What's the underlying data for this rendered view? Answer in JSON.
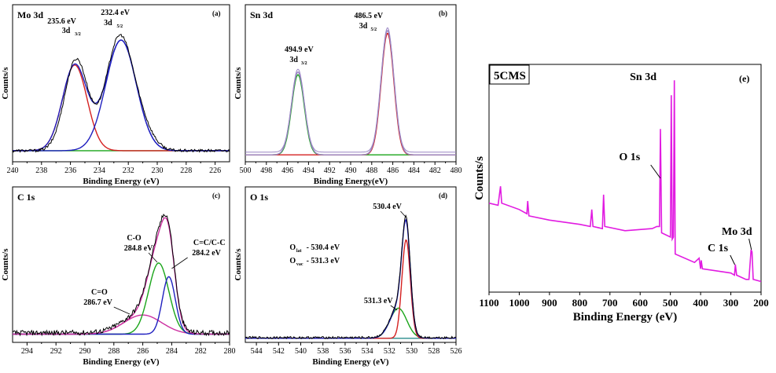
{
  "figure": {
    "axis_common": {
      "x_title": "Binding Energy (eV)",
      "y_title": "Counts/s"
    },
    "colors": {
      "raw": "#000000",
      "envelope": "#1f1fbf",
      "fitA": "#d42020",
      "fitB": "#1aa51a",
      "fitC": "#1f1fbf",
      "fitD": "#cc2fa0",
      "background_sn": "#9a86c4",
      "survey": "#e11be1",
      "baseline_o": "#2a8c8c"
    }
  },
  "chart_data": [
    {
      "id": "a",
      "type": "line",
      "panel_label": "(a)",
      "corner_label": "Mo 3d",
      "xlabel": "Binding Energy (eV)",
      "ylabel": "Counts/s",
      "xlim": [
        240,
        225
      ],
      "xticks": [
        240,
        238,
        236,
        234,
        232,
        230,
        228,
        226
      ],
      "annotations": [
        {
          "text": "235.6 eV",
          "sub_text": "3d",
          "sub_script": "3/2",
          "x": 235.6
        },
        {
          "text": "232.4 eV",
          "sub_text": "3d",
          "sub_script": "5/2",
          "x": 232.4
        }
      ],
      "series": [
        {
          "role": "fit",
          "color_key": "fitB",
          "peaks": [],
          "base": 0.08
        },
        {
          "role": "fit",
          "color_key": "fitA",
          "peaks": [
            [
              235.7,
              0.62,
              0.85
            ]
          ],
          "base": 0.08
        },
        {
          "role": "fit",
          "color_key": "fitC",
          "peaks": [
            [
              232.5,
              0.8,
              1.05
            ]
          ],
          "base": 0.08
        },
        {
          "role": "envelope",
          "color_key": "envelope",
          "peaks": [
            [
              235.7,
              0.62,
              0.85
            ],
            [
              232.5,
              0.8,
              1.05
            ]
          ],
          "base": 0.08
        },
        {
          "role": "raw",
          "color_key": "raw",
          "peaks": [
            [
              235.6,
              0.66,
              0.8
            ],
            [
              232.6,
              0.82,
              0.95
            ],
            [
              231.0,
              0.12,
              0.8
            ]
          ],
          "base": 0.08,
          "noise": 0.01
        }
      ]
    },
    {
      "id": "b",
      "type": "line",
      "panel_label": "(b)",
      "corner_label": "Sn 3d",
      "xlabel": "Binding Energy(eV)",
      "ylabel": "Counts/s",
      "xlim": [
        500,
        480
      ],
      "xticks": [
        500,
        498,
        496,
        494,
        492,
        490,
        488,
        486,
        484,
        482,
        480
      ],
      "annotations": [
        {
          "text": "494.9 eV",
          "sub_text": "3d",
          "sub_script": "3/2",
          "x": 494.9
        },
        {
          "text": "486.5 eV",
          "sub_text": "3d",
          "sub_script": "5/2",
          "x": 486.5
        }
      ],
      "series": [
        {
          "role": "fit",
          "color_key": "fitB",
          "peaks": [
            [
              495.0,
              0.58,
              0.6
            ]
          ],
          "base": 0.05
        },
        {
          "role": "fit",
          "color_key": "fitA",
          "peaks": [
            [
              486.5,
              0.88,
              0.6
            ]
          ],
          "base": 0.05
        },
        {
          "role": "envelope",
          "color_key": "background_sn",
          "peaks": [
            [
              495.0,
              0.6,
              0.62
            ],
            [
              486.5,
              0.9,
              0.62
            ]
          ],
          "base": 0.05
        },
        {
          "role": "raw",
          "color_key": "background_sn",
          "peaks": [
            [
              495.0,
              0.6,
              0.6
            ],
            [
              486.5,
              0.9,
              0.6
            ]
          ],
          "base": 0.07
        }
      ]
    },
    {
      "id": "c",
      "type": "line",
      "panel_label": "(c)",
      "corner_label": "C 1s",
      "xlabel": "Binding Energy (eV)",
      "ylabel": "Counts/s",
      "xlim": [
        295,
        280
      ],
      "xticks": [
        294,
        292,
        290,
        288,
        286,
        284,
        282,
        280
      ],
      "annotations": [
        {
          "text": "C-O",
          "text2": "284.8 eV",
          "x": 284.8
        },
        {
          "text": "C=C/C-C",
          "text2": "284.2 eV",
          "x": 284.2
        },
        {
          "text": "C=O",
          "text2": "286.7 eV",
          "x": 286.7
        }
      ],
      "series": [
        {
          "role": "fit",
          "color_key": "fitD",
          "peaks": [
            [
              286.0,
              0.14,
              1.3
            ]
          ],
          "base": 0.06
        },
        {
          "role": "fit",
          "color_key": "fitB",
          "peaks": [
            [
              284.9,
              0.52,
              0.7
            ]
          ],
          "base": 0.06
        },
        {
          "role": "fit",
          "color_key": "fitC",
          "peaks": [
            [
              284.2,
              0.42,
              0.45
            ]
          ],
          "base": 0.06
        },
        {
          "role": "envelope",
          "color_key": "fitD",
          "peaks": [
            [
              286.0,
              0.14,
              1.3
            ],
            [
              284.9,
              0.52,
              0.7
            ],
            [
              284.2,
              0.42,
              0.45
            ]
          ],
          "base": 0.06
        },
        {
          "role": "raw",
          "color_key": "raw",
          "peaks": [
            [
              286.0,
              0.15,
              1.3
            ],
            [
              284.9,
              0.53,
              0.68
            ],
            [
              284.2,
              0.43,
              0.45
            ]
          ],
          "base": 0.07,
          "noise": 0.018
        }
      ]
    },
    {
      "id": "d",
      "type": "line",
      "panel_label": "(d)",
      "corner_label": "O 1s",
      "xlabel": "Binding Energy (eV)",
      "ylabel": "Counts/s",
      "xlim": [
        545,
        526
      ],
      "xticks": [
        544,
        542,
        540,
        538,
        536,
        534,
        532,
        530,
        528,
        526
      ],
      "annotations": [
        {
          "text": "530.4 eV",
          "x": 530.4
        },
        {
          "text": "531.3 eV",
          "x": 531.3
        },
        {
          "text": "O",
          "sub": "lat",
          "rest": "- 530.4 eV"
        },
        {
          "text": "O",
          "sub": "vac",
          "rest": "- 531.3 eV"
        }
      ],
      "series": [
        {
          "role": "fit",
          "color_key": "baseline_o",
          "peaks": [],
          "base": 0.03
        },
        {
          "role": "fit",
          "color_key": "fitB",
          "peaks": [
            [
              531.2,
              0.22,
              0.75
            ]
          ],
          "base": 0.03
        },
        {
          "role": "fit",
          "color_key": "fitA",
          "peaks": [
            [
              530.5,
              0.72,
              0.38
            ]
          ],
          "base": 0.03
        },
        {
          "role": "envelope",
          "color_key": "fitC",
          "peaks": [
            [
              531.2,
              0.22,
              0.75
            ],
            [
              530.5,
              0.72,
              0.38
            ]
          ],
          "base": 0.03
        },
        {
          "role": "raw",
          "color_key": "raw",
          "peaks": [
            [
              531.2,
              0.22,
              0.75
            ],
            [
              530.5,
              0.74,
              0.38
            ]
          ],
          "base": 0.035,
          "noise": 0.008
        }
      ]
    },
    {
      "id": "e",
      "type": "line",
      "panel_label": "(e)",
      "corner_label": "5CMS",
      "xlabel": "Binding Energy (eV)",
      "ylabel": "Counts/s",
      "xlim": [
        1100,
        200
      ],
      "xticks": [
        1100,
        1000,
        900,
        800,
        700,
        600,
        500,
        400,
        300,
        200
      ],
      "annotations": [
        {
          "text": "Sn 3d",
          "x": 487
        },
        {
          "text": "O 1s",
          "x": 531
        },
        {
          "text": "Mo 3d",
          "x": 232
        },
        {
          "text": "C 1s",
          "x": 285
        }
      ],
      "series": [
        {
          "role": "survey",
          "color_key": "survey",
          "profile": [
            [
              1100,
              0.42
            ],
            [
              1070,
              0.41
            ],
            [
              1062,
              0.5
            ],
            [
              1058,
              0.42
            ],
            [
              1000,
              0.39
            ],
            [
              975,
              0.37
            ],
            [
              972,
              0.43
            ],
            [
              968,
              0.36
            ],
            [
              900,
              0.34
            ],
            [
              800,
              0.32
            ],
            [
              765,
              0.31
            ],
            [
              760,
              0.39
            ],
            [
              756,
              0.31
            ],
            [
              725,
              0.3
            ],
            [
              721,
              0.46
            ],
            [
              717,
              0.31
            ],
            [
              650,
              0.29
            ],
            [
              560,
              0.3
            ],
            [
              545,
              0.31
            ],
            [
              536,
              0.31
            ],
            [
              533,
              0.77
            ],
            [
              529,
              0.28
            ],
            [
              500,
              0.26
            ],
            [
              497,
              0.93
            ],
            [
              494,
              0.25
            ],
            [
              490,
              0.26
            ],
            [
              487,
              1.0
            ],
            [
              484,
              0.18
            ],
            [
              420,
              0.14
            ],
            [
              405,
              0.16
            ],
            [
              400,
              0.11
            ],
            [
              398,
              0.15
            ],
            [
              394,
              0.11
            ],
            [
              300,
              0.09
            ],
            [
              288,
              0.08
            ],
            [
              285,
              0.13
            ],
            [
              281,
              0.08
            ],
            [
              250,
              0.06
            ],
            [
              240,
              0.06
            ],
            [
              233,
              0.2
            ],
            [
              230,
              0.19
            ],
            [
              226,
              0.06
            ],
            [
              200,
              0.05
            ]
          ]
        }
      ]
    }
  ]
}
